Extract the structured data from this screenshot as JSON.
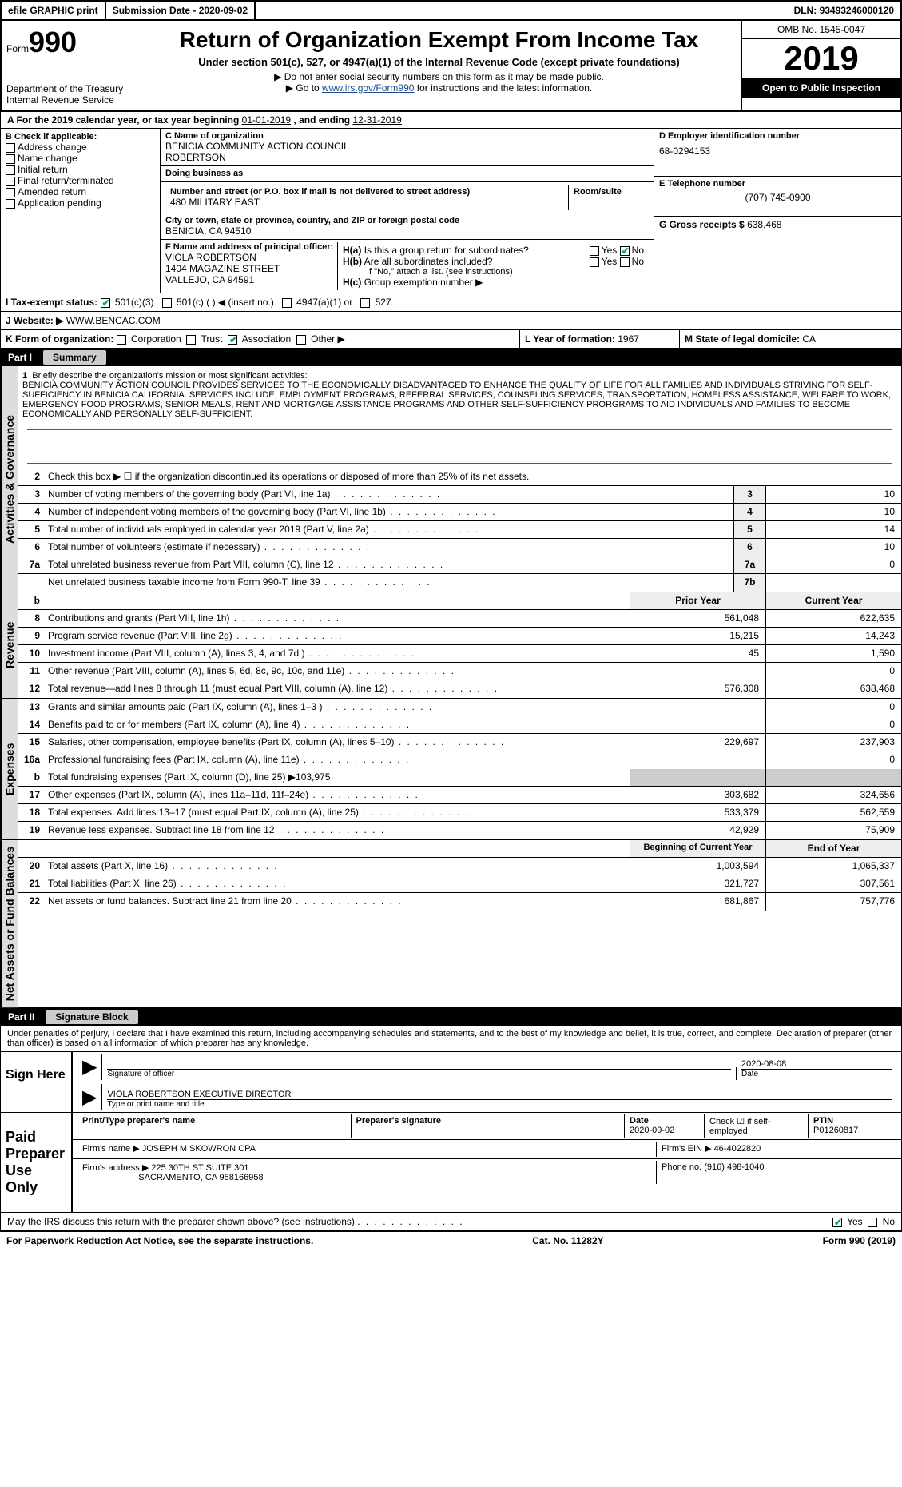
{
  "topbar": {
    "efile": "efile GRAPHIC print",
    "submission_label": "Submission Date - ",
    "submission_date": "2020-09-02",
    "dln_label": "DLN: ",
    "dln": "93493246000120"
  },
  "header": {
    "form_word": "Form",
    "form_no": "990",
    "dept1": "Department of the Treasury",
    "dept2": "Internal Revenue Service",
    "title": "Return of Organization Exempt From Income Tax",
    "sub1": "Under section 501(c), 527, or 4947(a)(1) of the Internal Revenue Code (except private foundations)",
    "sub2": "Do not enter social security numbers on this form as it may be made public.",
    "sub3a": "Go to ",
    "sub3_link": "www.irs.gov/Form990",
    "sub3b": " for instructions and the latest information.",
    "omb": "OMB No. 1545-0047",
    "year": "2019",
    "open": "Open to Public Inspection"
  },
  "row_a": {
    "prefix": "A For the 2019 calendar year, or tax year beginning ",
    "begin": "01-01-2019",
    "mid": "  , and ending ",
    "end": "12-31-2019"
  },
  "col_b": {
    "header": "B Check if applicable:",
    "items": [
      "Address change",
      "Name change",
      "Initial return",
      "Final return/terminated",
      "Amended return",
      "Application pending"
    ]
  },
  "col_c": {
    "name_label": "C Name of organization",
    "name1": "BENICIA COMMUNITY ACTION COUNCIL",
    "name2": "ROBERTSON",
    "dba_label": "Doing business as",
    "street_label": "Number and street (or P.O. box if mail is not delivered to street address)",
    "street": "480 MILITARY EAST",
    "room_label": "Room/suite",
    "city_label": "City or town, state or province, country, and ZIP or foreign postal code",
    "city": "BENICIA, CA  94510",
    "officer_label": "F Name and address of principal officer:",
    "officer_name": "VIOLA ROBERTSON",
    "officer_street": "1404 MAGAZINE STREET",
    "officer_city": "VALLEJO, CA  94591"
  },
  "col_d": {
    "ein_label": "D Employer identification number",
    "ein": "68-0294153",
    "tel_label": "E Telephone number",
    "tel": "(707) 745-0900",
    "gross_label": "G Gross receipts $ ",
    "gross": "638,468"
  },
  "col_h": {
    "ha_label": "H(a)",
    "ha_text": "Is this a group return for subordinates?",
    "hb_label": "H(b)",
    "hb_text": "Are all subordinates included?",
    "hb_note": "If \"No,\" attach a list. (see instructions)",
    "hc_label": "H(c)",
    "hc_text": "Group exemption number ▶",
    "yes": "Yes",
    "no": "No"
  },
  "row_i": {
    "label": "I   Tax-exempt status:",
    "opts": [
      "501(c)(3)",
      "501(c) (  ) ◀ (insert no.)",
      "4947(a)(1) or",
      "527"
    ]
  },
  "row_j": {
    "label": "J   Website: ▶",
    "value": "WWW.BENCAC.COM"
  },
  "row_k": {
    "label": "K Form of organization:",
    "opts": [
      "Corporation",
      "Trust",
      "Association",
      "Other ▶"
    ],
    "l_label": "L Year of formation: ",
    "l_val": "1967",
    "m_label": "M State of legal domicile: ",
    "m_val": "CA"
  },
  "part1": {
    "num": "Part I",
    "title": "Summary",
    "side_ag": "Activities & Governance",
    "side_rev": "Revenue",
    "side_exp": "Expenses",
    "side_na": "Net Assets or Fund Balances",
    "line1_label": "Briefly describe the organization's mission or most significant activities:",
    "mission": "BENICIA COMMUNITY ACTION COUNCIL PROVIDES SERVICES TO THE ECONOMICALLY DISADVANTAGED TO ENHANCE THE QUALITY OF LIFE FOR ALL FAMILIES AND INDIVIDUALS STRIVING FOR SELF-SUFFICIENCY IN BENICIA CALIFORNIA. SERVICES INCLUDE; EMPLOYMENT PROGRAMS, REFERRAL SERVICES, COUNSELING SERVICES, TRANSPORTATION, HOMELESS ASSISTANCE, WELFARE TO WORK, EMERGENCY FOOD PROGRAMS, SENIOR MEALS, RENT AND MORTGAGE ASSISTANCE PROGRAMS AND OTHER SELF-SUFFICIENCY PRORGRAMS TO AID INDIVIDUALS AND FAMILIES TO BECOME ECONOMICALLY AND PERSONALLY SELF-SUFFICIENT.",
    "line2": "Check this box ▶ ☐ if the organization discontinued its operations or disposed of more than 25% of its net assets.",
    "ag_lines": [
      {
        "n": "3",
        "d": "Number of voting members of the governing body (Part VI, line 1a)",
        "box": "3",
        "v": "10"
      },
      {
        "n": "4",
        "d": "Number of independent voting members of the governing body (Part VI, line 1b)",
        "box": "4",
        "v": "10"
      },
      {
        "n": "5",
        "d": "Total number of individuals employed in calendar year 2019 (Part V, line 2a)",
        "box": "5",
        "v": "14"
      },
      {
        "n": "6",
        "d": "Total number of volunteers (estimate if necessary)",
        "box": "6",
        "v": "10"
      },
      {
        "n": "7a",
        "d": "Total unrelated business revenue from Part VIII, column (C), line 12",
        "box": "7a",
        "v": "0"
      },
      {
        "n": "",
        "d": "Net unrelated business taxable income from Form 990-T, line 39",
        "box": "7b",
        "v": ""
      }
    ],
    "col_prior": "Prior Year",
    "col_current": "Current Year",
    "rev_lines": [
      {
        "n": "8",
        "d": "Contributions and grants (Part VIII, line 1h)",
        "p": "561,048",
        "c": "622,635"
      },
      {
        "n": "9",
        "d": "Program service revenue (Part VIII, line 2g)",
        "p": "15,215",
        "c": "14,243"
      },
      {
        "n": "10",
        "d": "Investment income (Part VIII, column (A), lines 3, 4, and 7d )",
        "p": "45",
        "c": "1,590"
      },
      {
        "n": "11",
        "d": "Other revenue (Part VIII, column (A), lines 5, 6d, 8c, 9c, 10c, and 11e)",
        "p": "",
        "c": "0"
      },
      {
        "n": "12",
        "d": "Total revenue—add lines 8 through 11 (must equal Part VIII, column (A), line 12)",
        "p": "576,308",
        "c": "638,468"
      }
    ],
    "exp_lines": [
      {
        "n": "13",
        "d": "Grants and similar amounts paid (Part IX, column (A), lines 1–3 )",
        "p": "",
        "c": "0"
      },
      {
        "n": "14",
        "d": "Benefits paid to or for members (Part IX, column (A), line 4)",
        "p": "",
        "c": "0"
      },
      {
        "n": "15",
        "d": "Salaries, other compensation, employee benefits (Part IX, column (A), lines 5–10)",
        "p": "229,697",
        "c": "237,903"
      },
      {
        "n": "16a",
        "d": "Professional fundraising fees (Part IX, column (A), line 11e)",
        "p": "",
        "c": "0"
      }
    ],
    "line16b": {
      "n": "b",
      "d": "Total fundraising expenses (Part IX, column (D), line 25) ▶",
      "v": "103,975"
    },
    "exp_lines2": [
      {
        "n": "17",
        "d": "Other expenses (Part IX, column (A), lines 11a–11d, 11f–24e)",
        "p": "303,682",
        "c": "324,656"
      },
      {
        "n": "18",
        "d": "Total expenses. Add lines 13–17 (must equal Part IX, column (A), line 25)",
        "p": "533,379",
        "c": "562,559"
      },
      {
        "n": "19",
        "d": "Revenue less expenses. Subtract line 18 from line 12",
        "p": "42,929",
        "c": "75,909"
      }
    ],
    "col_begin": "Beginning of Current Year",
    "col_end": "End of Year",
    "na_lines": [
      {
        "n": "20",
        "d": "Total assets (Part X, line 16)",
        "p": "1,003,594",
        "c": "1,065,337"
      },
      {
        "n": "21",
        "d": "Total liabilities (Part X, line 26)",
        "p": "321,727",
        "c": "307,561"
      },
      {
        "n": "22",
        "d": "Net assets or fund balances. Subtract line 21 from line 20",
        "p": "681,867",
        "c": "757,776"
      }
    ]
  },
  "part2": {
    "num": "Part II",
    "title": "Signature Block",
    "decl": "Under penalties of perjury, I declare that I have examined this return, including accompanying schedules and statements, and to the best of my knowledge and belief, it is true, correct, and complete. Declaration of preparer (other than officer) is based on all information of which preparer has any knowledge.",
    "sign_here": "Sign Here",
    "sig_officer": "Signature of officer",
    "sig_date_label": "Date",
    "sig_date": "2020-08-08",
    "sig_name": "VIOLA ROBERTSON  EXECUTIVE DIRECTOR",
    "sig_name_label": "Type or print name and title",
    "paid": "Paid Preparer Use Only",
    "prep_name_label": "Print/Type preparer's name",
    "prep_sig_label": "Preparer's signature",
    "prep_date_label": "Date",
    "prep_date": "2020-09-02",
    "prep_check_label": "Check ☑ if self-employed",
    "ptin_label": "PTIN",
    "ptin": "P01260817",
    "firm_name_label": "Firm's name     ▶",
    "firm_name": "JOSEPH M SKOWRON CPA",
    "firm_ein_label": "Firm's EIN ▶",
    "firm_ein": "46-4022820",
    "firm_addr_label": "Firm's address ▶",
    "firm_addr1": "225 30TH ST SUITE 301",
    "firm_addr2": "SACRAMENTO, CA  958166958",
    "firm_phone_label": "Phone no. ",
    "firm_phone": "(916) 498-1040",
    "discuss": "May the IRS discuss this return with the preparer shown above? (see instructions)",
    "yes": "Yes",
    "no": "No"
  },
  "footer": {
    "left": "For Paperwork Reduction Act Notice, see the separate instructions.",
    "mid": "Cat. No. 11282Y",
    "right": "Form 990 (2019)"
  }
}
